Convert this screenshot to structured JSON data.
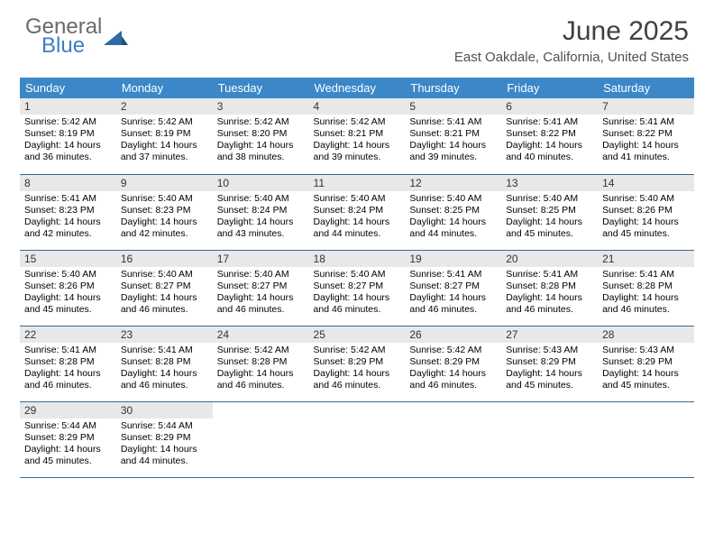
{
  "logo": {
    "top_text": "General",
    "bottom_text": "Blue",
    "icon_color": "#2d6aa8"
  },
  "header": {
    "title": "June 2025",
    "location": "East Oakdale, California, United States",
    "title_color": "#404040",
    "location_color": "#505050"
  },
  "styling": {
    "header_row_bg": "#3b87c8",
    "header_row_text": "#ffffff",
    "daynum_bg": "#e8e8e8",
    "row_border": "#3b6a94",
    "page_bg": "#ffffff",
    "body_text_color": "#000000",
    "th_fontsize": 13,
    "daynum_fontsize": 12,
    "body_fontsize": 10.5,
    "title_fontsize": 30,
    "location_fontsize": 15
  },
  "weekdays": [
    "Sunday",
    "Monday",
    "Tuesday",
    "Wednesday",
    "Thursday",
    "Friday",
    "Saturday"
  ],
  "days": [
    {
      "n": "1",
      "sr": "Sunrise: 5:42 AM",
      "ss": "Sunset: 8:19 PM",
      "dl": "Daylight: 14 hours and 36 minutes."
    },
    {
      "n": "2",
      "sr": "Sunrise: 5:42 AM",
      "ss": "Sunset: 8:19 PM",
      "dl": "Daylight: 14 hours and 37 minutes."
    },
    {
      "n": "3",
      "sr": "Sunrise: 5:42 AM",
      "ss": "Sunset: 8:20 PM",
      "dl": "Daylight: 14 hours and 38 minutes."
    },
    {
      "n": "4",
      "sr": "Sunrise: 5:42 AM",
      "ss": "Sunset: 8:21 PM",
      "dl": "Daylight: 14 hours and 39 minutes."
    },
    {
      "n": "5",
      "sr": "Sunrise: 5:41 AM",
      "ss": "Sunset: 8:21 PM",
      "dl": "Daylight: 14 hours and 39 minutes."
    },
    {
      "n": "6",
      "sr": "Sunrise: 5:41 AM",
      "ss": "Sunset: 8:22 PM",
      "dl": "Daylight: 14 hours and 40 minutes."
    },
    {
      "n": "7",
      "sr": "Sunrise: 5:41 AM",
      "ss": "Sunset: 8:22 PM",
      "dl": "Daylight: 14 hours and 41 minutes."
    },
    {
      "n": "8",
      "sr": "Sunrise: 5:41 AM",
      "ss": "Sunset: 8:23 PM",
      "dl": "Daylight: 14 hours and 42 minutes."
    },
    {
      "n": "9",
      "sr": "Sunrise: 5:40 AM",
      "ss": "Sunset: 8:23 PM",
      "dl": "Daylight: 14 hours and 42 minutes."
    },
    {
      "n": "10",
      "sr": "Sunrise: 5:40 AM",
      "ss": "Sunset: 8:24 PM",
      "dl": "Daylight: 14 hours and 43 minutes."
    },
    {
      "n": "11",
      "sr": "Sunrise: 5:40 AM",
      "ss": "Sunset: 8:24 PM",
      "dl": "Daylight: 14 hours and 44 minutes."
    },
    {
      "n": "12",
      "sr": "Sunrise: 5:40 AM",
      "ss": "Sunset: 8:25 PM",
      "dl": "Daylight: 14 hours and 44 minutes."
    },
    {
      "n": "13",
      "sr": "Sunrise: 5:40 AM",
      "ss": "Sunset: 8:25 PM",
      "dl": "Daylight: 14 hours and 45 minutes."
    },
    {
      "n": "14",
      "sr": "Sunrise: 5:40 AM",
      "ss": "Sunset: 8:26 PM",
      "dl": "Daylight: 14 hours and 45 minutes."
    },
    {
      "n": "15",
      "sr": "Sunrise: 5:40 AM",
      "ss": "Sunset: 8:26 PM",
      "dl": "Daylight: 14 hours and 45 minutes."
    },
    {
      "n": "16",
      "sr": "Sunrise: 5:40 AM",
      "ss": "Sunset: 8:27 PM",
      "dl": "Daylight: 14 hours and 46 minutes."
    },
    {
      "n": "17",
      "sr": "Sunrise: 5:40 AM",
      "ss": "Sunset: 8:27 PM",
      "dl": "Daylight: 14 hours and 46 minutes."
    },
    {
      "n": "18",
      "sr": "Sunrise: 5:40 AM",
      "ss": "Sunset: 8:27 PM",
      "dl": "Daylight: 14 hours and 46 minutes."
    },
    {
      "n": "19",
      "sr": "Sunrise: 5:41 AM",
      "ss": "Sunset: 8:27 PM",
      "dl": "Daylight: 14 hours and 46 minutes."
    },
    {
      "n": "20",
      "sr": "Sunrise: 5:41 AM",
      "ss": "Sunset: 8:28 PM",
      "dl": "Daylight: 14 hours and 46 minutes."
    },
    {
      "n": "21",
      "sr": "Sunrise: 5:41 AM",
      "ss": "Sunset: 8:28 PM",
      "dl": "Daylight: 14 hours and 46 minutes."
    },
    {
      "n": "22",
      "sr": "Sunrise: 5:41 AM",
      "ss": "Sunset: 8:28 PM",
      "dl": "Daylight: 14 hours and 46 minutes."
    },
    {
      "n": "23",
      "sr": "Sunrise: 5:41 AM",
      "ss": "Sunset: 8:28 PM",
      "dl": "Daylight: 14 hours and 46 minutes."
    },
    {
      "n": "24",
      "sr": "Sunrise: 5:42 AM",
      "ss": "Sunset: 8:28 PM",
      "dl": "Daylight: 14 hours and 46 minutes."
    },
    {
      "n": "25",
      "sr": "Sunrise: 5:42 AM",
      "ss": "Sunset: 8:29 PM",
      "dl": "Daylight: 14 hours and 46 minutes."
    },
    {
      "n": "26",
      "sr": "Sunrise: 5:42 AM",
      "ss": "Sunset: 8:29 PM",
      "dl": "Daylight: 14 hours and 46 minutes."
    },
    {
      "n": "27",
      "sr": "Sunrise: 5:43 AM",
      "ss": "Sunset: 8:29 PM",
      "dl": "Daylight: 14 hours and 45 minutes."
    },
    {
      "n": "28",
      "sr": "Sunrise: 5:43 AM",
      "ss": "Sunset: 8:29 PM",
      "dl": "Daylight: 14 hours and 45 minutes."
    },
    {
      "n": "29",
      "sr": "Sunrise: 5:44 AM",
      "ss": "Sunset: 8:29 PM",
      "dl": "Daylight: 14 hours and 45 minutes."
    },
    {
      "n": "30",
      "sr": "Sunrise: 5:44 AM",
      "ss": "Sunset: 8:29 PM",
      "dl": "Daylight: 14 hours and 44 minutes."
    }
  ]
}
